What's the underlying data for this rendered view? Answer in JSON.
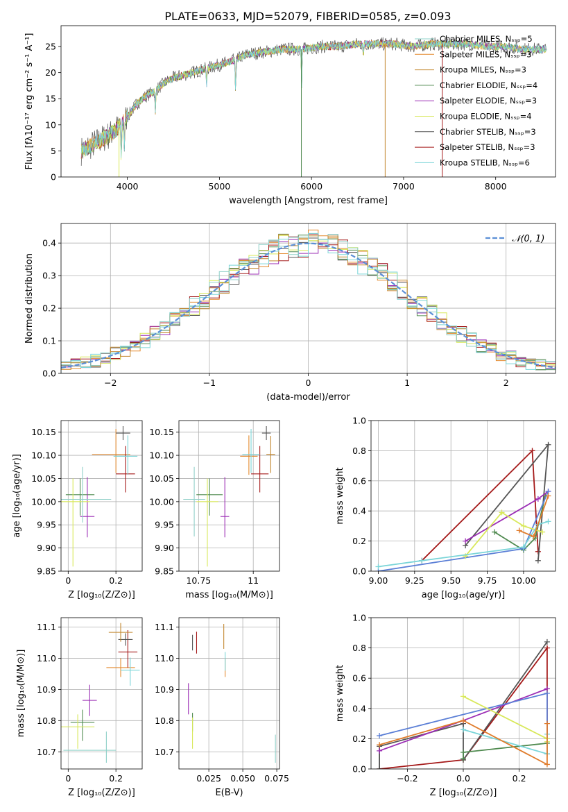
{
  "figure": {
    "title": "PLATE=0633, MJD=52079, FIBERID=0585, z=0.093"
  },
  "model_colors": [
    "#8fd0c8",
    "#e38a2f",
    "#c2872f",
    "#4f8a4f",
    "#9b2db5",
    "#d8e85a",
    "#555555",
    "#a41818",
    "#7ad5d8"
  ],
  "chart_data": [
    {
      "id": "spectrum",
      "type": "line",
      "title": "PLATE=0633, MJD=52079, FIBERID=0585, z=0.093",
      "xlabel": "wavelength [Angstrom, rest frame]",
      "ylabel": "Flux [fλ10⁻¹⁷ erg cm⁻² s⁻¹ A⁻¹]",
      "xlim": [
        3280,
        8650
      ],
      "ylim": [
        0,
        29
      ],
      "xticks": [
        4000,
        5000,
        6000,
        7000,
        8000
      ],
      "yticks": [
        0,
        5,
        10,
        15,
        20,
        25
      ],
      "grid": false,
      "legend_position": "top-right",
      "series": [
        {
          "name": "Chabrier MILES, Nₛₛₚ=5"
        },
        {
          "name": "Salpeter MILES, Nₛₛₚ=3"
        },
        {
          "name": "Kroupa MILES, Nₛₛₚ=3"
        },
        {
          "name": "Chabrier ELODIE, Nₛₛₚ=4"
        },
        {
          "name": "Salpeter ELODIE, Nₛₛₚ=3"
        },
        {
          "name": "Kroupa ELODIE, Nₛₛₚ=4"
        },
        {
          "name": "Chabrier STELIB, Nₛₛₚ=3"
        },
        {
          "name": "Salpeter STELIB, Nₛₛₚ=3"
        },
        {
          "name": "Kroupa STELIB, Nₛₛₚ=6"
        }
      ],
      "continuum": {
        "x": [
          3500,
          3600,
          3700,
          3800,
          3900,
          4000,
          4100,
          4200,
          4300,
          4400,
          4500,
          4700,
          4900,
          5100,
          5300,
          5500,
          5700,
          5900,
          6100,
          6300,
          6500,
          6700,
          6900,
          7100,
          7300,
          7500,
          7700,
          7900,
          8100,
          8300,
          8500
        ],
        "y": [
          5,
          6,
          7,
          8,
          9.5,
          11.5,
          14,
          15.5,
          16.5,
          18,
          19,
          20,
          21,
          22,
          23.5,
          24,
          24.5,
          24.5,
          25,
          25,
          25.5,
          25.5,
          25.5,
          25,
          25.5,
          25.5,
          25.5,
          25,
          25,
          24.5,
          24.5
        ]
      },
      "absorption_features": [
        {
          "x": 3934,
          "depth": 6
        },
        {
          "x": 3968,
          "depth": 5
        },
        {
          "x": 4304,
          "depth": 4
        },
        {
          "x": 4861,
          "depth": 3
        },
        {
          "x": 5175,
          "depth": 6
        },
        {
          "x": 5893,
          "depth": 7
        },
        {
          "x": 6563,
          "depth": 2
        }
      ]
    },
    {
      "id": "residuals",
      "type": "line",
      "xlabel": "(data-model)/error",
      "ylabel": "Normed distribution",
      "xlim": [
        -2.5,
        2.5
      ],
      "ylim": [
        0,
        0.46
      ],
      "xticks": [
        -2,
        -1,
        0,
        1,
        2
      ],
      "yticks": [
        0.0,
        0.1,
        0.2,
        0.3,
        0.4
      ],
      "grid": true,
      "legend_position": "top-right",
      "reference": {
        "name": "𝒩(0, 1)",
        "mean": 0,
        "sigma": 1
      },
      "bins": {
        "start": -2.5,
        "width": 0.1,
        "count": 50
      }
    },
    {
      "id": "age-vs-Z",
      "type": "scatter",
      "xlabel": "Z [log₁₀(Z/Z⊙)]",
      "ylabel": "age  [log₁₀(age/yr)]",
      "xlim": [
        -0.03,
        0.31
      ],
      "ylim": [
        9.85,
        10.175
      ],
      "xticks": [
        0.0,
        0.2
      ],
      "yticks": [
        9.85,
        9.9,
        9.95,
        10.0,
        10.05,
        10.1,
        10.15
      ],
      "grid": true,
      "points": [
        {
          "x": 0.05,
          "y": 10.015,
          "xerr": [
            0.06,
            0.06
          ],
          "yerr": [
            0.045,
            0.035
          ]
        },
        {
          "x": 0.2,
          "y": 10.102,
          "xerr": [
            0.1,
            0.06
          ],
          "yerr": [
            0.04,
            0.055
          ]
        },
        {
          "x": 0.24,
          "y": 10.06,
          "xerr": [
            0.04,
            0.04
          ],
          "yerr": [
            0.04,
            0.06
          ]
        },
        {
          "x": 0.08,
          "y": 9.968,
          "xerr": [
            0.03,
            0.03
          ],
          "yerr": [
            0.045,
            0.085
          ]
        },
        {
          "x": 0.02,
          "y": 10.0,
          "xerr": [
            0.07,
            0.07
          ],
          "yerr": [
            0.14,
            0.05
          ]
        },
        {
          "x": 0.25,
          "y": 10.098,
          "xerr": [
            0.06,
            0.04
          ],
          "yerr": [
            0.04,
            0.045
          ]
        },
        {
          "x": 0.23,
          "y": 10.148,
          "xerr": [
            0.03,
            0.03
          ],
          "yerr": [
            0.015,
            0.015
          ]
        },
        {
          "x": 0.06,
          "y": 10.005,
          "xerr": [
            0.1,
            0.12
          ],
          "yerr": [
            0.05,
            0.07
          ]
        }
      ]
    },
    {
      "id": "age-vs-mass",
      "type": "scatter",
      "xlabel": "mass [log₁₀(M/M⊙)]",
      "xlim": [
        10.66,
        11.12
      ],
      "ylim": [
        9.85,
        10.175
      ],
      "xticks": [
        10.75,
        11.0
      ],
      "yticks": [
        9.85,
        9.9,
        9.95,
        10.0,
        10.05,
        10.1,
        10.15
      ],
      "grid": true,
      "points": [
        {
          "x": 10.8,
          "y": 10.015,
          "xerr": [
            0.06,
            0.06
          ],
          "yerr": [
            0.045,
            0.035
          ]
        },
        {
          "x": 10.98,
          "y": 10.098,
          "xerr": [
            0.04,
            0.04
          ],
          "yerr": [
            0.04,
            0.045
          ]
        },
        {
          "x": 11.03,
          "y": 10.06,
          "xerr": [
            0.04,
            0.04
          ],
          "yerr": [
            0.04,
            0.06
          ]
        },
        {
          "x": 10.87,
          "y": 9.968,
          "xerr": [
            0.02,
            0.02
          ],
          "yerr": [
            0.045,
            0.085
          ]
        },
        {
          "x": 10.79,
          "y": 10.0,
          "xerr": [
            0.05,
            0.05
          ],
          "yerr": [
            0.14,
            0.05
          ]
        },
        {
          "x": 10.99,
          "y": 10.102,
          "xerr": [
            0.04,
            0.04
          ],
          "yerr": [
            0.04,
            0.055
          ]
        },
        {
          "x": 11.06,
          "y": 10.148,
          "xerr": [
            0.02,
            0.02
          ],
          "yerr": [
            0.015,
            0.015
          ]
        },
        {
          "x": 11.08,
          "y": 10.102,
          "xerr": [
            0.02,
            0.02
          ],
          "yerr": [
            0.04,
            0.04
          ]
        },
        {
          "x": 10.73,
          "y": 10.005,
          "xerr": [
            0.05,
            0.05
          ],
          "yerr": [
            0.08,
            0.07
          ]
        }
      ]
    },
    {
      "id": "weight-vs-age",
      "type": "line",
      "xlabel": "age  [log₁₀(age/yr)]",
      "ylabel": "mass weight",
      "xlim": [
        8.95,
        10.22
      ],
      "ylim": [
        0,
        1
      ],
      "xticks": [
        9.0,
        9.25,
        9.5,
        9.75,
        10.0,
        10.25
      ],
      "xtick_labels": [
        "9.00",
        "9.25",
        "9.50",
        "9.75",
        "10.00"
      ],
      "yticks": [
        0.0,
        0.2,
        0.4,
        0.6,
        0.8,
        1.0
      ],
      "grid": true,
      "series": [
        {
          "x": [
            9.3,
            10.06,
            10.1
          ],
          "y": [
            0.07,
            0.8,
            0.13
          ]
        },
        {
          "x": [
            9.6,
            10.17,
            10.1
          ],
          "y": [
            0.17,
            0.84,
            0.07
          ]
        },
        {
          "x": [
            9.8,
            10.0,
            10.08,
            10.15
          ],
          "y": [
            0.26,
            0.14,
            0.22,
            0.5
          ]
        },
        {
          "x": [
            9.6,
            10.1,
            10.17
          ],
          "y": [
            0.2,
            0.48,
            0.53
          ]
        },
        {
          "x": [
            9.0,
            10.0,
            10.17
          ],
          "y": [
            0.0,
            0.15,
            0.53
          ]
        },
        {
          "x": [
            9.6,
            9.85,
            10.0,
            10.13
          ],
          "y": [
            0.1,
            0.39,
            0.3,
            0.26
          ]
        },
        {
          "x": [
            9.0,
            9.3,
            10.0,
            10.1,
            10.17
          ],
          "y": [
            0.03,
            0.07,
            0.16,
            0.31,
            0.33
          ]
        },
        {
          "x": [
            9.97,
            10.07,
            10.17
          ],
          "y": [
            0.27,
            0.23,
            0.5
          ]
        }
      ]
    },
    {
      "id": "mass-vs-Z",
      "type": "scatter",
      "xlabel": "Z [log₁₀(Z/Z⊙)]",
      "ylabel": "mass [log₁₀(M/M⊙)]",
      "xlim": [
        -0.03,
        0.31
      ],
      "ylim": [
        10.645,
        11.13
      ],
      "xticks": [
        0.0,
        0.2
      ],
      "yticks": [
        10.7,
        10.8,
        10.9,
        11.0,
        11.1
      ],
      "grid": true,
      "points": [
        {
          "x": 0.06,
          "y": 10.795,
          "xerr": [
            0.05,
            0.05
          ],
          "yerr": [
            0.06,
            0.04
          ]
        },
        {
          "x": 0.22,
          "y": 10.97,
          "xerr": [
            0.06,
            0.06
          ],
          "yerr": [
            0.03,
            0.03
          ]
        },
        {
          "x": 0.26,
          "y": 10.962,
          "xerr": [
            0.04,
            0.04
          ],
          "yerr": [
            0.05,
            0.04
          ]
        },
        {
          "x": 0.25,
          "y": 11.02,
          "xerr": [
            0.04,
            0.04
          ],
          "yerr": [
            0.05,
            0.07
          ]
        },
        {
          "x": 0.24,
          "y": 11.06,
          "xerr": [
            0.03,
            0.03
          ],
          "yerr": [
            0.02,
            0.02
          ]
        },
        {
          "x": 0.22,
          "y": 11.083,
          "xerr": [
            0.05,
            0.05
          ],
          "yerr": [
            0.03,
            0.03
          ]
        },
        {
          "x": 0.09,
          "y": 10.865,
          "xerr": [
            0.03,
            0.03
          ],
          "yerr": [
            0.05,
            0.05
          ]
        },
        {
          "x": 0.04,
          "y": 10.78,
          "xerr": [
            0.07,
            0.07
          ],
          "yerr": [
            0.07,
            0.04
          ]
        },
        {
          "x": 0.16,
          "y": 10.705,
          "xerr": [
            0.18,
            0.04
          ],
          "yerr": [
            0.04,
            0.06
          ]
        }
      ]
    },
    {
      "id": "mass-vs-EBV",
      "type": "scatter",
      "xlabel": "E(B-V)",
      "xlim": [
        0.003,
        0.077
      ],
      "ylim": [
        10.645,
        11.13
      ],
      "xticks": [
        0.025,
        0.05,
        0.075
      ],
      "xtick_labels": [
        "0.025",
        "0.050",
        "0.075"
      ],
      "yticks": [
        10.7,
        10.8,
        10.9,
        11.0,
        11.1
      ],
      "grid": true,
      "points": [
        {
          "x": 0.013,
          "y": 10.795,
          "xerr": [
            0,
            0
          ],
          "yerr": [
            0.03,
            0.03
          ]
        },
        {
          "x": 0.037,
          "y": 10.97,
          "xerr": [
            0,
            0
          ],
          "yerr": [
            0.03,
            0.03
          ]
        },
        {
          "x": 0.037,
          "y": 10.99,
          "xerr": [
            0,
            0
          ],
          "yerr": [
            0.03,
            0.03
          ]
        },
        {
          "x": 0.016,
          "y": 11.05,
          "xerr": [
            0,
            0
          ],
          "yerr": [
            0.035,
            0.035
          ]
        },
        {
          "x": 0.013,
          "y": 11.05,
          "xerr": [
            0,
            0
          ],
          "yerr": [
            0.025,
            0.025
          ]
        },
        {
          "x": 0.036,
          "y": 11.07,
          "xerr": [
            0,
            0
          ],
          "yerr": [
            0.04,
            0.04
          ]
        },
        {
          "x": 0.01,
          "y": 10.87,
          "xerr": [
            0,
            0
          ],
          "yerr": [
            0.05,
            0.05
          ]
        },
        {
          "x": 0.013,
          "y": 10.76,
          "xerr": [
            0,
            0
          ],
          "yerr": [
            0.05,
            0.05
          ]
        },
        {
          "x": 0.074,
          "y": 10.71,
          "xerr": [
            0,
            0
          ],
          "yerr": [
            0.045,
            0.045
          ]
        }
      ]
    },
    {
      "id": "weight-vs-Z",
      "type": "line",
      "xlabel": "Z [log₁₀(Z/Z⊙)]",
      "ylabel": "mass weight",
      "xlim": [
        -0.33,
        0.33
      ],
      "ylim": [
        0,
        1
      ],
      "xticks": [
        -0.2,
        0.0,
        0.2
      ],
      "yticks": [
        0.0,
        0.2,
        0.4,
        0.6,
        0.8,
        1.0
      ],
      "grid": true,
      "series": [
        {
          "x": [
            -0.3,
            0.0,
            0.3,
            0.3
          ],
          "y": [
            0.0,
            0.06,
            0.8,
            0.1
          ]
        },
        {
          "x": [
            -0.3,
            -0.3,
            0.0,
            0.0,
            0.3
          ],
          "y": [
            0.0,
            0.15,
            0.3,
            0.06,
            0.84
          ]
        },
        {
          "x": [
            0.0,
            0.0,
            0.3
          ],
          "y": [
            0.07,
            0.11,
            0.17
          ]
        },
        {
          "x": [
            -0.3,
            0.0,
            0.3
          ],
          "y": [
            0.12,
            0.32,
            0.53
          ]
        },
        {
          "x": [
            -0.3,
            0.3,
            0.3
          ],
          "y": [
            0.22,
            0.5,
            0.2
          ]
        },
        {
          "x": [
            0.0,
            0.3,
            0.3
          ],
          "y": [
            0.48,
            0.2,
            0.18
          ]
        },
        {
          "x": [
            0.0,
            0.3,
            0.3
          ],
          "y": [
            0.26,
            0.1,
            0.23
          ]
        },
        {
          "x": [
            -0.3,
            0.0,
            0.3,
            0.3
          ],
          "y": [
            0.16,
            0.32,
            0.03,
            0.3
          ]
        }
      ]
    }
  ]
}
